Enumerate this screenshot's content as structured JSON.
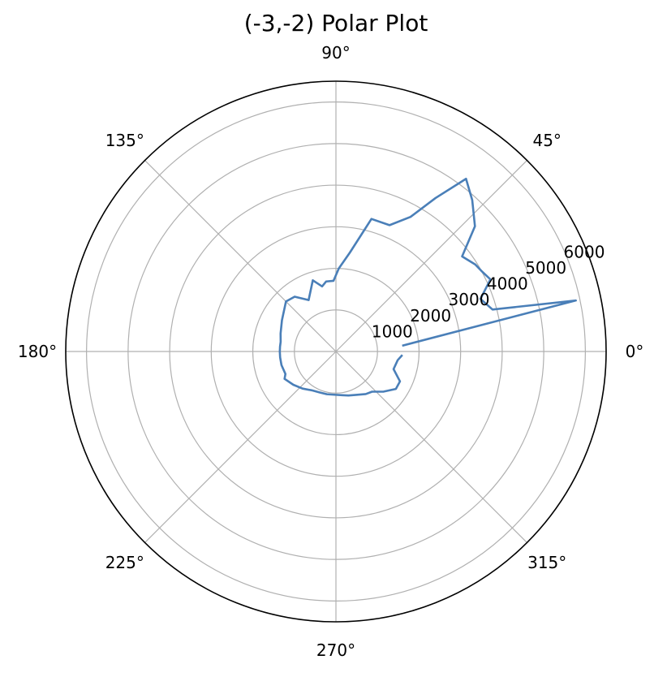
{
  "chart_data": {
    "type": "line",
    "polar": true,
    "title": "(-3,-2) Polar Plot",
    "theta_unit": "degrees",
    "theta_ticks": [
      "0°",
      "45°",
      "90°",
      "135°",
      "180°",
      "225°",
      "270°",
      "315°"
    ],
    "r_ticks": [
      "1000",
      "2000",
      "3000",
      "4000",
      "5000",
      "6000"
    ],
    "rlim": [
      0,
      6500
    ],
    "grid": true,
    "line_color": "#4a7fb8",
    "series": [
      {
        "theta": [
          5,
          12,
          15,
          20,
          25,
          29,
          32,
          37,
          42,
          48,
          53,
          57,
          61,
          67,
          75,
          82,
          88,
          92,
          98,
          102,
          108,
          118,
          127,
          135,
          150,
          162,
          170,
          175,
          180,
          186,
          194,
          204,
          208,
          218,
          228,
          238,
          248,
          258,
          268,
          278,
          286,
          295,
          305,
          312,
          320,
          328,
          335,
          343,
          352,
          357
        ],
        "r": [
          1600,
          5900,
          3900,
          3700,
          4100,
          4000,
          3950,
          3800,
          4500,
          4900,
          5200,
          4400,
          3700,
          3300,
          3300,
          2400,
          2000,
          1700,
          1700,
          1600,
          1800,
          1400,
          1650,
          1700,
          1500,
          1400,
          1350,
          1350,
          1350,
          1350,
          1350,
          1330,
          1400,
          1300,
          1200,
          1100,
          1060,
          1050,
          1040,
          1060,
          1100,
          1150,
          1250,
          1300,
          1500,
          1700,
          1700,
          1450,
          1500,
          1600
        ]
      }
    ]
  }
}
